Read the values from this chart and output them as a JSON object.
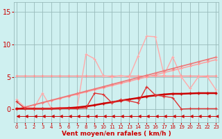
{
  "x": [
    0,
    1,
    2,
    3,
    4,
    5,
    6,
    7,
    8,
    9,
    10,
    11,
    12,
    13,
    14,
    15,
    16,
    17,
    18,
    19,
    20,
    21,
    22,
    23
  ],
  "background_color": "#cff0f0",
  "grid_color": "#99bbbb",
  "xlabel": "Vent moyen/en rafales ( km/h )",
  "xlabel_color": "#cc0000",
  "tick_color": "#cc0000",
  "yticks": [
    0,
    5,
    10,
    15
  ],
  "ylim": [
    -2.0,
    16.5
  ],
  "xlim": [
    -0.3,
    23.3
  ],
  "series": [
    {
      "name": "flat_line_5",
      "color": "#ff8888",
      "lw": 1.0,
      "marker": "+",
      "ms": 2.5,
      "mew": 0.8,
      "data": [
        5.2,
        5.2,
        5.2,
        5.2,
        5.2,
        5.2,
        5.2,
        5.2,
        5.2,
        5.2,
        5.2,
        5.2,
        5.2,
        5.2,
        5.2,
        5.2,
        5.2,
        5.2,
        5.2,
        5.2,
        5.2,
        5.2,
        5.2,
        5.2
      ]
    },
    {
      "name": "diagonal_light",
      "color": "#ff9999",
      "lw": 1.0,
      "marker": "+",
      "ms": 2.5,
      "mew": 0.8,
      "data": [
        0.0,
        0.33,
        0.67,
        1.0,
        1.33,
        1.67,
        2.0,
        2.33,
        2.67,
        3.0,
        3.33,
        3.67,
        4.0,
        4.33,
        4.67,
        5.0,
        5.33,
        5.67,
        6.0,
        6.33,
        6.67,
        7.0,
        7.33,
        7.67
      ]
    },
    {
      "name": "bumpy_light_curve",
      "color": "#ffaaaa",
      "lw": 1.0,
      "marker": "+",
      "ms": 2.5,
      "mew": 0.8,
      "data": [
        1.5,
        0.3,
        0.2,
        2.5,
        0.2,
        0.3,
        0.2,
        0.3,
        8.5,
        7.8,
        5.2,
        5.0,
        5.2,
        5.0,
        8.2,
        11.3,
        11.2,
        5.3,
        8.1,
        5.0,
        3.2,
        5.1,
        5.0,
        3.0
      ]
    },
    {
      "name": "diagonal_mid",
      "color": "#ee7777",
      "lw": 1.2,
      "marker": "+",
      "ms": 2.5,
      "mew": 0.8,
      "data": [
        0.0,
        0.35,
        0.7,
        1.05,
        1.4,
        1.75,
        2.1,
        2.45,
        2.8,
        3.15,
        3.5,
        3.85,
        4.2,
        4.55,
        4.9,
        5.25,
        5.6,
        5.95,
        6.3,
        6.65,
        7.0,
        7.35,
        7.7,
        8.05
      ]
    },
    {
      "name": "flat_dark_curve",
      "color": "#cc0000",
      "lw": 1.8,
      "marker": "+",
      "ms": 2.5,
      "mew": 1.0,
      "data": [
        0.1,
        0.1,
        0.1,
        0.1,
        0.1,
        0.15,
        0.2,
        0.3,
        0.45,
        0.65,
        0.9,
        1.1,
        1.35,
        1.55,
        1.75,
        2.0,
        2.15,
        2.3,
        2.4,
        2.4,
        2.45,
        2.5,
        2.5,
        2.5
      ]
    },
    {
      "name": "bumpy_dark",
      "color": "#dd3333",
      "lw": 1.0,
      "marker": "+",
      "ms": 2.5,
      "mew": 0.8,
      "data": [
        1.2,
        0.1,
        0.05,
        0.1,
        0.1,
        0.1,
        0.1,
        0.1,
        0.2,
        2.5,
        2.3,
        1.0,
        1.5,
        1.3,
        1.0,
        3.5,
        2.2,
        2.0,
        1.8,
        0.05,
        0.1,
        0.1,
        0.1,
        0.1
      ]
    },
    {
      "name": "arrow_row",
      "color": "#cc0000",
      "lw": 0.7,
      "marker": 4,
      "ms": 3.5,
      "mew": 0.7,
      "data": [
        -1.0,
        -1.0,
        -1.0,
        -1.0,
        -1.0,
        -1.0,
        -1.0,
        -1.0,
        -1.0,
        -1.0,
        -1.0,
        -1.0,
        -1.0,
        -1.0,
        -1.0,
        -1.0,
        -1.0,
        -1.0,
        -1.0,
        -1.0,
        -1.0,
        -1.0,
        -1.0,
        -1.0
      ]
    }
  ]
}
